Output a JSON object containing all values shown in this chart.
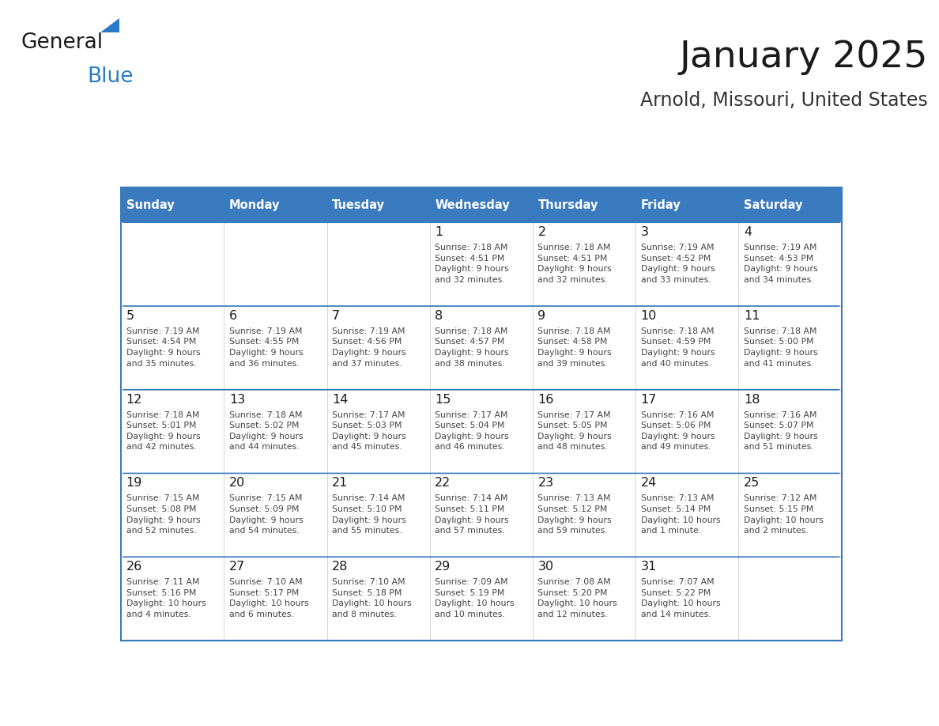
{
  "title": "January 2025",
  "subtitle": "Arnold, Missouri, United States",
  "header_bg": "#3a7abf",
  "header_text_color": "#ffffff",
  "border_color": "#3a7abf",
  "text_color": "#333333",
  "day_headers": [
    "Sunday",
    "Monday",
    "Tuesday",
    "Wednesday",
    "Thursday",
    "Friday",
    "Saturday"
  ],
  "weeks": [
    [
      {
        "day": "",
        "info": ""
      },
      {
        "day": "",
        "info": ""
      },
      {
        "day": "",
        "info": ""
      },
      {
        "day": "1",
        "info": "Sunrise: 7:18 AM\nSunset: 4:51 PM\nDaylight: 9 hours\nand 32 minutes."
      },
      {
        "day": "2",
        "info": "Sunrise: 7:18 AM\nSunset: 4:51 PM\nDaylight: 9 hours\nand 32 minutes."
      },
      {
        "day": "3",
        "info": "Sunrise: 7:19 AM\nSunset: 4:52 PM\nDaylight: 9 hours\nand 33 minutes."
      },
      {
        "day": "4",
        "info": "Sunrise: 7:19 AM\nSunset: 4:53 PM\nDaylight: 9 hours\nand 34 minutes."
      }
    ],
    [
      {
        "day": "5",
        "info": "Sunrise: 7:19 AM\nSunset: 4:54 PM\nDaylight: 9 hours\nand 35 minutes."
      },
      {
        "day": "6",
        "info": "Sunrise: 7:19 AM\nSunset: 4:55 PM\nDaylight: 9 hours\nand 36 minutes."
      },
      {
        "day": "7",
        "info": "Sunrise: 7:19 AM\nSunset: 4:56 PM\nDaylight: 9 hours\nand 37 minutes."
      },
      {
        "day": "8",
        "info": "Sunrise: 7:18 AM\nSunset: 4:57 PM\nDaylight: 9 hours\nand 38 minutes."
      },
      {
        "day": "9",
        "info": "Sunrise: 7:18 AM\nSunset: 4:58 PM\nDaylight: 9 hours\nand 39 minutes."
      },
      {
        "day": "10",
        "info": "Sunrise: 7:18 AM\nSunset: 4:59 PM\nDaylight: 9 hours\nand 40 minutes."
      },
      {
        "day": "11",
        "info": "Sunrise: 7:18 AM\nSunset: 5:00 PM\nDaylight: 9 hours\nand 41 minutes."
      }
    ],
    [
      {
        "day": "12",
        "info": "Sunrise: 7:18 AM\nSunset: 5:01 PM\nDaylight: 9 hours\nand 42 minutes."
      },
      {
        "day": "13",
        "info": "Sunrise: 7:18 AM\nSunset: 5:02 PM\nDaylight: 9 hours\nand 44 minutes."
      },
      {
        "day": "14",
        "info": "Sunrise: 7:17 AM\nSunset: 5:03 PM\nDaylight: 9 hours\nand 45 minutes."
      },
      {
        "day": "15",
        "info": "Sunrise: 7:17 AM\nSunset: 5:04 PM\nDaylight: 9 hours\nand 46 minutes."
      },
      {
        "day": "16",
        "info": "Sunrise: 7:17 AM\nSunset: 5:05 PM\nDaylight: 9 hours\nand 48 minutes."
      },
      {
        "day": "17",
        "info": "Sunrise: 7:16 AM\nSunset: 5:06 PM\nDaylight: 9 hours\nand 49 minutes."
      },
      {
        "day": "18",
        "info": "Sunrise: 7:16 AM\nSunset: 5:07 PM\nDaylight: 9 hours\nand 51 minutes."
      }
    ],
    [
      {
        "day": "19",
        "info": "Sunrise: 7:15 AM\nSunset: 5:08 PM\nDaylight: 9 hours\nand 52 minutes."
      },
      {
        "day": "20",
        "info": "Sunrise: 7:15 AM\nSunset: 5:09 PM\nDaylight: 9 hours\nand 54 minutes."
      },
      {
        "day": "21",
        "info": "Sunrise: 7:14 AM\nSunset: 5:10 PM\nDaylight: 9 hours\nand 55 minutes."
      },
      {
        "day": "22",
        "info": "Sunrise: 7:14 AM\nSunset: 5:11 PM\nDaylight: 9 hours\nand 57 minutes."
      },
      {
        "day": "23",
        "info": "Sunrise: 7:13 AM\nSunset: 5:12 PM\nDaylight: 9 hours\nand 59 minutes."
      },
      {
        "day": "24",
        "info": "Sunrise: 7:13 AM\nSunset: 5:14 PM\nDaylight: 10 hours\nand 1 minute."
      },
      {
        "day": "25",
        "info": "Sunrise: 7:12 AM\nSunset: 5:15 PM\nDaylight: 10 hours\nand 2 minutes."
      }
    ],
    [
      {
        "day": "26",
        "info": "Sunrise: 7:11 AM\nSunset: 5:16 PM\nDaylight: 10 hours\nand 4 minutes."
      },
      {
        "day": "27",
        "info": "Sunrise: 7:10 AM\nSunset: 5:17 PM\nDaylight: 10 hours\nand 6 minutes."
      },
      {
        "day": "28",
        "info": "Sunrise: 7:10 AM\nSunset: 5:18 PM\nDaylight: 10 hours\nand 8 minutes."
      },
      {
        "day": "29",
        "info": "Sunrise: 7:09 AM\nSunset: 5:19 PM\nDaylight: 10 hours\nand 10 minutes."
      },
      {
        "day": "30",
        "info": "Sunrise: 7:08 AM\nSunset: 5:20 PM\nDaylight: 10 hours\nand 12 minutes."
      },
      {
        "day": "31",
        "info": "Sunrise: 7:07 AM\nSunset: 5:22 PM\nDaylight: 10 hours\nand 14 minutes."
      },
      {
        "day": "",
        "info": ""
      }
    ]
  ]
}
